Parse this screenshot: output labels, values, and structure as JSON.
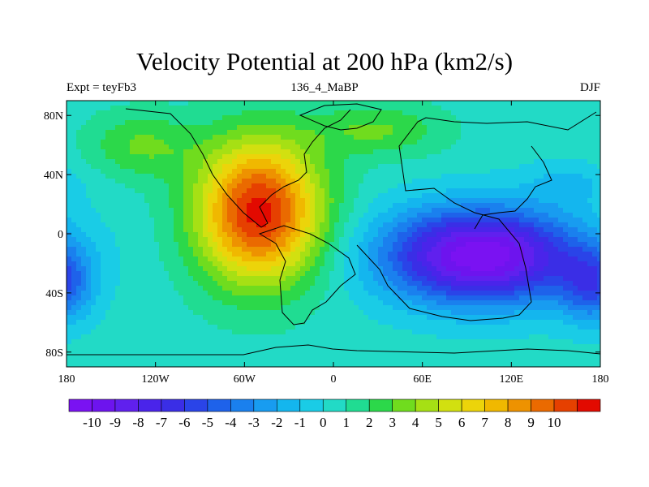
{
  "chart_data": {
    "type": "heatmap",
    "title": "Velocity Potential at 200 hPa (km2/s)",
    "subtitle_left": "Expt = teyFb3",
    "subtitle_center": "136_4_MaBP",
    "subtitle_right": "DJF",
    "x_ticks": [
      "180",
      "120W",
      "60W",
      "0",
      "60E",
      "120E",
      "180"
    ],
    "y_ticks": [
      "80N",
      "40N",
      "0",
      "40S",
      "80S"
    ],
    "xlim": [
      -180,
      180
    ],
    "ylim": [
      -90,
      90
    ],
    "colorbar_labels": [
      "-10",
      "-9",
      "-8",
      "-7",
      "-6",
      "-5",
      "-4",
      "-3",
      "-2",
      "-1",
      "0",
      "1",
      "2",
      "3",
      "4",
      "5",
      "6",
      "7",
      "8",
      "9",
      "10"
    ],
    "colorbar_colors": [
      "#7a12f2",
      "#6d14ee",
      "#6020ee",
      "#4a24ea",
      "#3a2ee6",
      "#2a44e8",
      "#1e62ea",
      "#1a80ee",
      "#189cf0",
      "#14b6ee",
      "#1acce6",
      "#22dac6",
      "#20dc92",
      "#2cd84a",
      "#70dc1e",
      "#a6e014",
      "#d2e010",
      "#ecd40a",
      "#f0b800",
      "#ee9200",
      "#ea6a00",
      "#e64000",
      "#e20a00"
    ],
    "field_centers": [
      {
        "lon": -50,
        "lat": 15,
        "amp": 10.5,
        "slon": 42,
        "slat": 48
      },
      {
        "lon": -130,
        "lat": 60,
        "amp": 2.5,
        "slon": 35,
        "slat": 22
      },
      {
        "lon": 100,
        "lat": -15,
        "amp": -11,
        "slon": 65,
        "slat": 32
      },
      {
        "lon": 175,
        "lat": -35,
        "amp": -4.5,
        "slon": 22,
        "slat": 25
      },
      {
        "lon": 160,
        "lat": 35,
        "amp": -1.5,
        "slon": 30,
        "slat": 15
      },
      {
        "lon": 30,
        "lat": 70,
        "amp": 2.5,
        "slon": 45,
        "slat": 18
      }
    ]
  }
}
